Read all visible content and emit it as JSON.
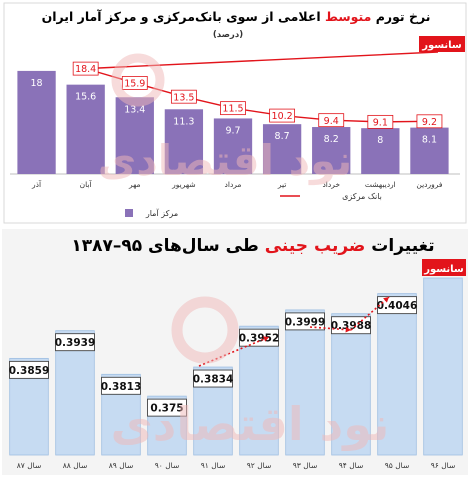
{
  "watermark": "نود اقتصادی",
  "colors": {
    "bar": "#8a72b8",
    "bar2": "#c6dbf2",
    "bar2_edge": "#9fbfe2",
    "line": "#e2141b",
    "censor": "#e2141b",
    "panel": "#f4f4f4",
    "dark": "#1a1a1a",
    "red_text": "#e2141b"
  },
  "chart_data": [
    {
      "type": "bar",
      "title_parts": [
        "نرخ تورم ",
        "متوسط",
        " اعلامی از سوی بانک‌مرکزی و مرکز آمار ایران"
      ],
      "subtitle": "(درصد)",
      "categories": [
        "فروردین",
        "اردیبهشت",
        "خرداد",
        "تیر",
        "مرداد",
        "شهریور",
        "مهر",
        "آبان",
        "آذر"
      ],
      "series": [
        {
          "name": "مرکز آمار",
          "kind": "bar",
          "values": [
            8.1,
            8,
            8.2,
            8.7,
            9.7,
            11.3,
            13.4,
            15.6,
            18
          ]
        },
        {
          "name": "بانک مرکزی",
          "kind": "line",
          "values": [
            9.2,
            9.1,
            9.4,
            10.2,
            11.5,
            13.5,
            15.9,
            18.4,
            null
          ]
        }
      ],
      "callout": "سانسور",
      "ylim": [
        0,
        22
      ]
    },
    {
      "type": "bar",
      "title_parts": [
        "تغییرات ",
        "ضریب جینی",
        " طی سال‌های ۹۵–۱۳۸۷"
      ],
      "categories": [
        "سال ۸۷",
        "سال ۸۸",
        "سال ۸۹",
        "سال ۹۰",
        "سال ۹۱",
        "سال ۹۲",
        "سال ۹۳",
        "سال ۹۴",
        "سال ۹۵",
        "سال ۹۶"
      ],
      "values": [
        0.3859,
        0.3939,
        0.3813,
        0.375,
        0.3834,
        0.3952,
        0.3999,
        0.3988,
        0.4046,
        null
      ],
      "value_labels": [
        "0.3859",
        "0.3939",
        "0.3813",
        "0.375",
        "0.3834",
        "0.3952",
        "0.3999",
        "0.3988",
        "0.4046",
        ""
      ],
      "callout": "سانسور",
      "trend_arrow": "dotted red arrow from 91 to 95",
      "ylim": [
        0.358,
        0.412
      ]
    }
  ]
}
